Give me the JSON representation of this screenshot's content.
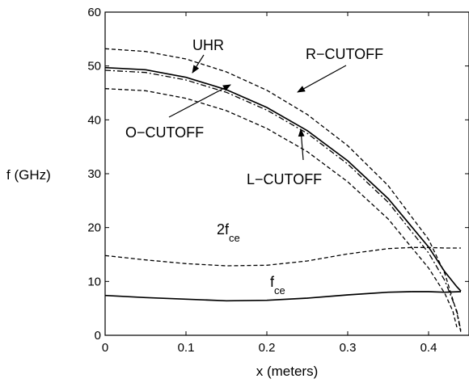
{
  "chart_data": {
    "type": "line",
    "xlabel": "x (meters)",
    "ylabel": "f (GHz)",
    "xlim": [
      0,
      0.45
    ],
    "ylim": [
      0,
      60
    ],
    "xticks": [
      0,
      0.1,
      0.2,
      0.3,
      0.4
    ],
    "xtick_labels": [
      "0",
      "0.1",
      "0.2",
      "0.3",
      "0.4"
    ],
    "yticks": [
      0,
      10,
      20,
      30,
      40,
      50,
      60
    ],
    "ytick_labels": [
      "0",
      "10",
      "20",
      "30",
      "40",
      "50",
      "60"
    ],
    "grid": false,
    "series": [
      {
        "name": "R−CUTOFF",
        "style": "dashed",
        "x": [
          0,
          0.05,
          0.1,
          0.15,
          0.2,
          0.25,
          0.3,
          0.35,
          0.4,
          0.42,
          0.435,
          0.44
        ],
        "y": [
          53.2,
          52.7,
          51.3,
          48.9,
          45.5,
          41.0,
          35.2,
          27.8,
          17.8,
          11.5,
          4.2,
          0.5
        ]
      },
      {
        "name": "UHR",
        "style": "solid",
        "x": [
          0,
          0.05,
          0.1,
          0.15,
          0.2,
          0.25,
          0.3,
          0.35,
          0.4,
          0.42,
          0.435,
          0.44
        ],
        "y": [
          49.7,
          49.3,
          47.9,
          45.6,
          42.3,
          38.0,
          32.4,
          25.4,
          16.4,
          11.8,
          9.0,
          8.2
        ]
      },
      {
        "name": "O−CUTOFF",
        "style": "dashdot",
        "x": [
          0,
          0.05,
          0.1,
          0.15,
          0.2,
          0.25,
          0.3,
          0.35,
          0.4,
          0.42,
          0.435,
          0.44
        ],
        "y": [
          49.2,
          48.8,
          47.4,
          45.1,
          41.8,
          37.5,
          31.8,
          24.7,
          15.3,
          10.2,
          4.5,
          0.8
        ]
      },
      {
        "name": "L−CUTOFF",
        "style": "dashed",
        "x": [
          0,
          0.05,
          0.1,
          0.15,
          0.2,
          0.25,
          0.3,
          0.35,
          0.4,
          0.42,
          0.43,
          0.435
        ],
        "y": [
          45.8,
          45.4,
          44.0,
          41.7,
          38.4,
          34.1,
          28.5,
          21.6,
          12.5,
          7.8,
          4.5,
          1.5
        ]
      },
      {
        "name": "2f_ce",
        "style": "dashed",
        "x": [
          0,
          0.05,
          0.1,
          0.15,
          0.2,
          0.25,
          0.3,
          0.35,
          0.38,
          0.4,
          0.42,
          0.44
        ],
        "y": [
          14.8,
          14.0,
          13.3,
          12.9,
          13.0,
          13.8,
          15.1,
          16.1,
          16.3,
          16.3,
          16.2,
          16.2
        ]
      },
      {
        "name": "f_ce",
        "style": "solid",
        "x": [
          0,
          0.05,
          0.1,
          0.15,
          0.2,
          0.25,
          0.3,
          0.35,
          0.38,
          0.4,
          0.42,
          0.44
        ],
        "y": [
          7.4,
          7.0,
          6.7,
          6.4,
          6.5,
          6.9,
          7.5,
          8.0,
          8.1,
          8.1,
          8.0,
          8.1
        ]
      }
    ],
    "annotations": [
      {
        "text": "UHR",
        "sub": "",
        "arrow": true
      },
      {
        "text": "R−CUTOFF",
        "sub": "",
        "arrow": true
      },
      {
        "text": "O−CUTOFF",
        "sub": "",
        "arrow": true
      },
      {
        "text": "L−CUTOFF",
        "sub": "",
        "arrow": true
      },
      {
        "text": "2f",
        "sub": "ce",
        "arrow": false
      },
      {
        "text": "f",
        "sub": "ce",
        "arrow": false
      }
    ]
  }
}
